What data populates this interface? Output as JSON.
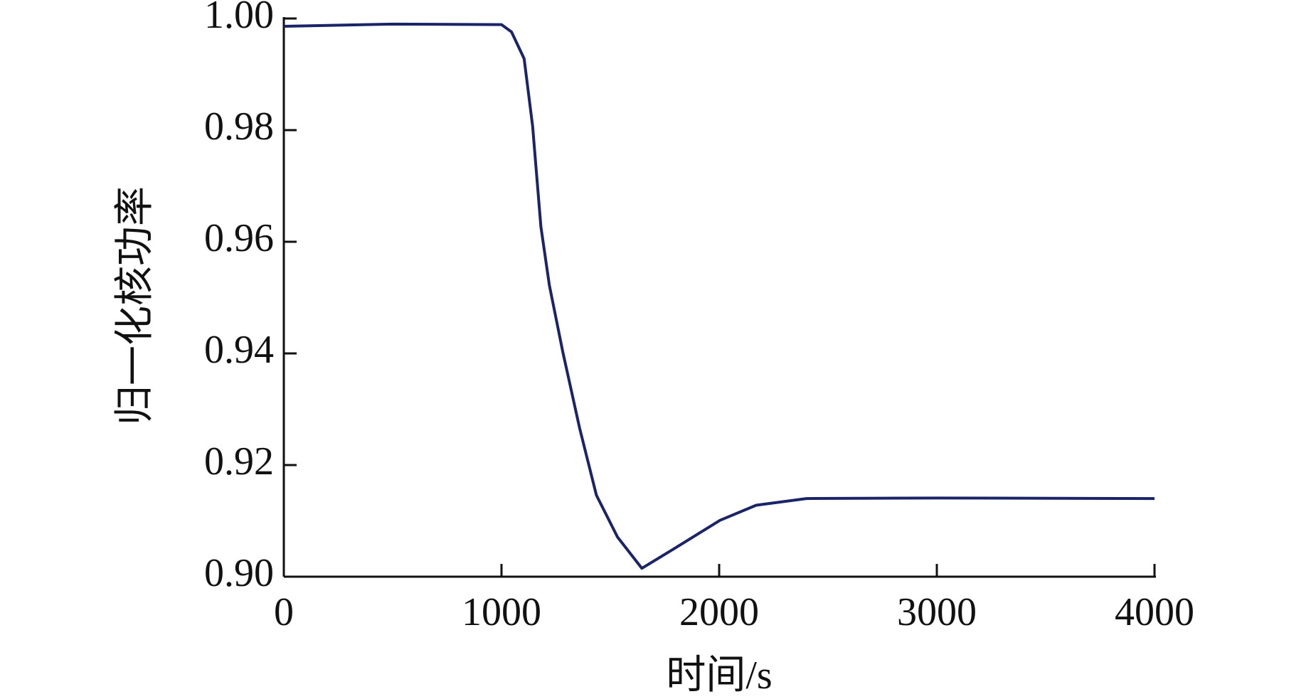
{
  "chart_data": {
    "type": "line",
    "xlabel": "时间/s",
    "ylabel": "归一化核功率",
    "x": [
      0,
      500,
      1000,
      1046,
      1104,
      1143,
      1181,
      1220,
      1282,
      1359,
      1436,
      1533,
      1645,
      1784,
      2004,
      2170,
      2401,
      3000,
      4000
    ],
    "series": [
      {
        "name": "归一化核功率",
        "color": "#1a2466",
        "values": [
          0.9986,
          0.999,
          0.9989,
          0.9976,
          0.9928,
          0.9807,
          0.9627,
          0.9522,
          0.9402,
          0.9266,
          0.9146,
          0.9071,
          0.9015,
          0.9048,
          0.9101,
          0.9128,
          0.914,
          0.9141,
          0.914
        ]
      }
    ],
    "xlim": [
      0,
      4000
    ],
    "xticks": [
      0,
      1000,
      2000,
      3000,
      4000
    ],
    "ylim": [
      0.9,
      1.0
    ],
    "yticks": [
      {
        "value": 0.9,
        "label": "0.90"
      },
      0.92,
      0.94,
      0.96,
      0.98,
      {
        "value": 1.0,
        "label": "1.00"
      }
    ],
    "grid": false
  }
}
